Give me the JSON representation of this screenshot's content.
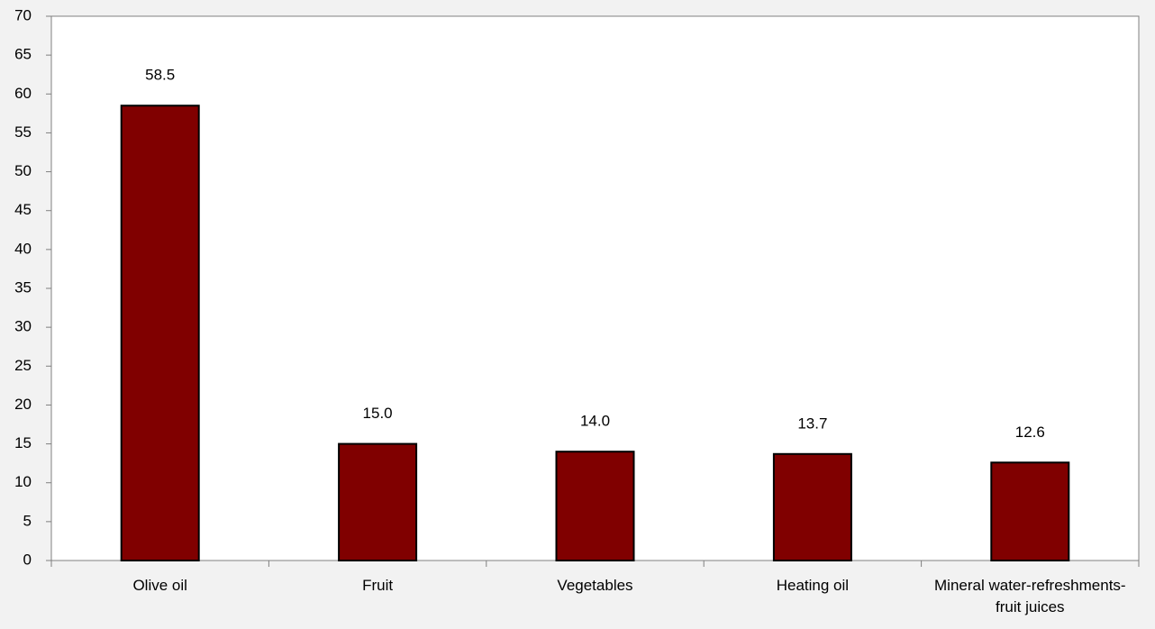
{
  "chart_data": {
    "type": "bar",
    "categories": [
      "Olive oil",
      "Fruit",
      "Vegetables",
      "Heating oil",
      "Mineral water-refreshments-fruit juices"
    ],
    "values": [
      58.5,
      15.0,
      14.0,
      13.7,
      12.6
    ],
    "value_labels": [
      "58.5",
      "15.0",
      "14.0",
      "13.7",
      "12.6"
    ],
    "color": "#800000",
    "ylim": [
      0,
      70
    ],
    "yticks": [
      0,
      5,
      10,
      15,
      20,
      25,
      30,
      35,
      40,
      45,
      50,
      55,
      60,
      65,
      70
    ],
    "grid": false
  }
}
